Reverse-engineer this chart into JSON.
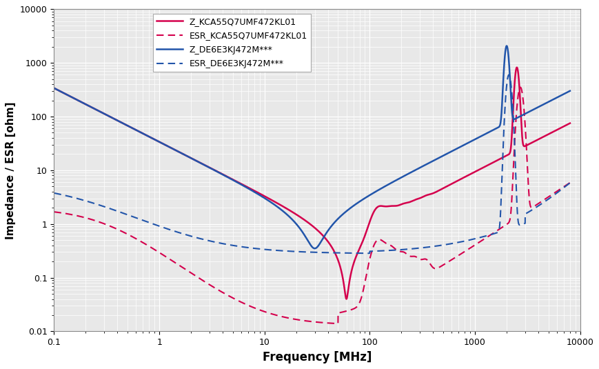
{
  "xlabel": "Frequency [MHz]",
  "ylabel": "Impedance / ESR [ohm]",
  "xlim": [
    0.1,
    10000
  ],
  "ylim": [
    0.01,
    10000
  ],
  "legend_labels": [
    "Z_KCA55Q7UMF472KL01",
    "ESR_KCA55Q7UMF472KL01",
    "Z_DE6E3KJ472M***",
    "ESR_DE6E3KJ472M***"
  ],
  "colors": {
    "red": "#d4004c",
    "blue": "#2255aa"
  },
  "bg_color": "#e8e8e8",
  "grid_color": "#ffffff"
}
